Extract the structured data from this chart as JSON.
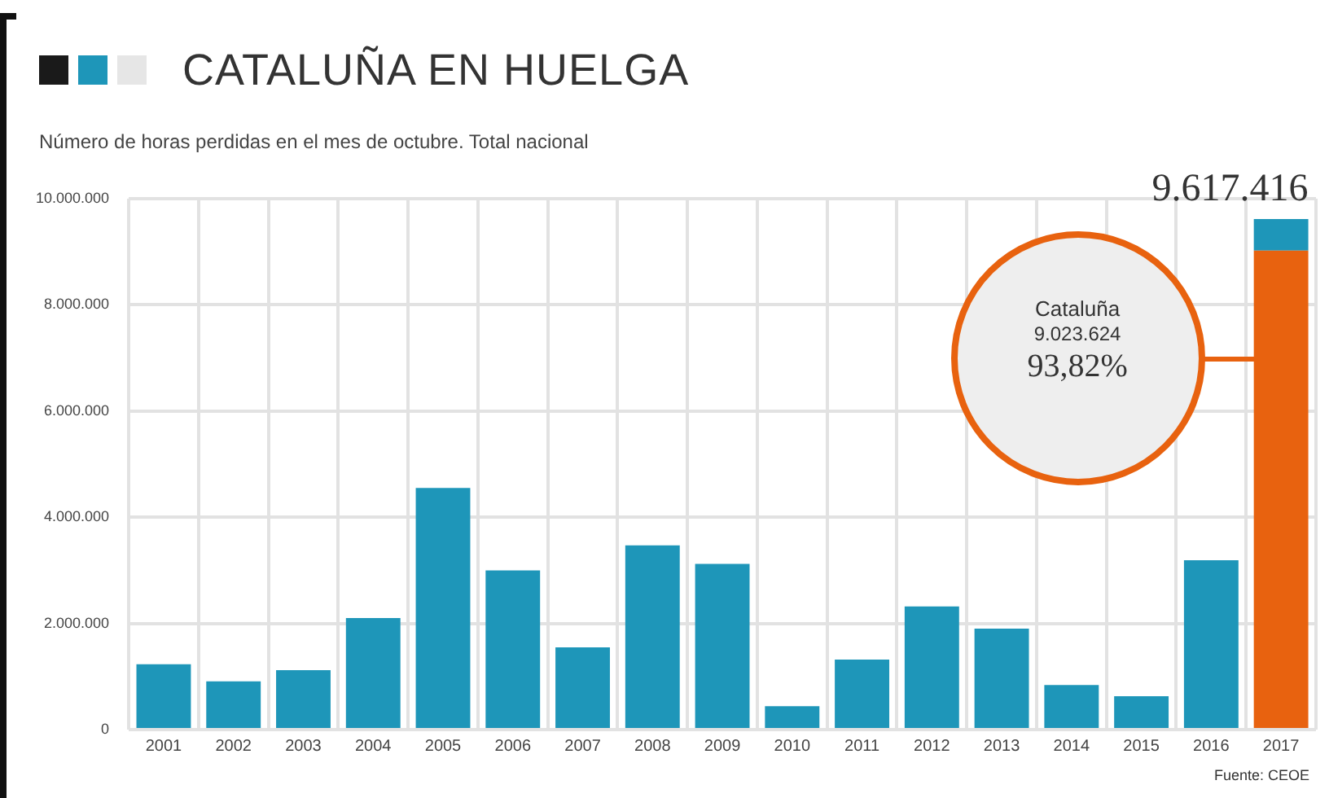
{
  "chart_data": {
    "type": "bar",
    "title": "CATALUÑA EN HUELGA",
    "subtitle": "Número de horas perdidas en el mes de octubre. Total nacional",
    "categories": [
      "2001",
      "2002",
      "2003",
      "2004",
      "2005",
      "2006",
      "2007",
      "2008",
      "2009",
      "2010",
      "2011",
      "2012",
      "2013",
      "2014",
      "2015",
      "2016",
      "2017"
    ],
    "stacked": true,
    "series": [
      {
        "color": "#e8620f",
        "values": [
          null,
          null,
          null,
          null,
          null,
          null,
          null,
          null,
          null,
          null,
          null,
          null,
          null,
          null,
          null,
          null,
          9023624
        ]
      },
      {
        "color": "#1e96b9",
        "values": [
          1230000,
          910000,
          1120000,
          2100000,
          4550000,
          3000000,
          1550000,
          3470000,
          3120000,
          440000,
          1320000,
          2320000,
          1900000,
          840000,
          630000,
          3190000,
          593792
        ]
      }
    ],
    "ylim": [
      0,
      10000000
    ],
    "yticks": [
      0,
      {
        "value": 2000000,
        "label": "2.000.000"
      },
      {
        "value": 4000000,
        "label": "4.000.000"
      },
      {
        "value": 6000000,
        "label": "6.000.000"
      },
      {
        "value": 8000000,
        "label": "8.000.000"
      },
      {
        "value": 10000000,
        "label": "10.000.000"
      }
    ],
    "grid": true,
    "annotations": [
      {
        "text": "9.617.416",
        "x": "2017",
        "y": 9617416
      },
      "Cataluña\n9.023.624\n93,82%",
      "Fuente: CEOE"
    ]
  }
}
